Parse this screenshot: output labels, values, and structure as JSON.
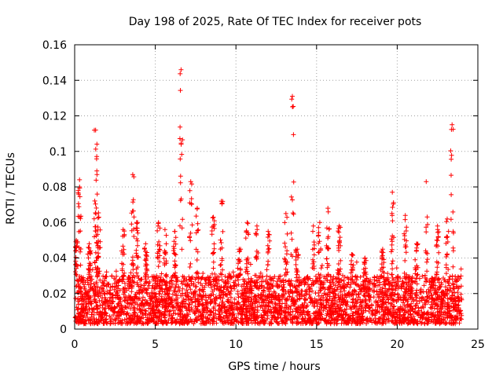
{
  "chart_data": {
    "type": "scatter",
    "title": "Day 198 of 2025, Rate Of TEC Index for receiver pots",
    "xlabel": "GPS time / hours",
    "ylabel": "ROTI / TECUs",
    "xlim": [
      0,
      25
    ],
    "ylim": [
      0,
      0.16
    ],
    "x_ticks": [
      "0",
      "5",
      "10",
      "15",
      "20",
      "25"
    ],
    "y_ticks": [
      "0",
      "0.02",
      "0.04",
      "0.06",
      "0.08",
      "0.1",
      "0.12",
      "0.14",
      "0.16"
    ],
    "x_tick_values": [
      0,
      5,
      10,
      15,
      20,
      25
    ],
    "y_tick_values": [
      0,
      0.02,
      0.04,
      0.06,
      0.08,
      0.1,
      0.12,
      0.14,
      0.16
    ],
    "grid": true,
    "marker": "+",
    "series_color": "#ff0000",
    "baseline": {
      "x_range": [
        0.0,
        24.0
      ],
      "y_min": 0.003,
      "y_typical": 0.018,
      "y_upper": 0.03
    },
    "spikes": [
      {
        "x": 0.1,
        "y_max": 0.05
      },
      {
        "x": 0.3,
        "y_max": 0.084
      },
      {
        "x": 0.9,
        "y_max": 0.048
      },
      {
        "x": 1.3,
        "y_max": 0.112
      },
      {
        "x": 1.5,
        "y_max": 0.063
      },
      {
        "x": 1.4,
        "y_max": 0.076
      },
      {
        "x": 3.0,
        "y_max": 0.056
      },
      {
        "x": 3.6,
        "y_max": 0.087
      },
      {
        "x": 3.9,
        "y_max": 0.06
      },
      {
        "x": 4.4,
        "y_max": 0.048
      },
      {
        "x": 5.2,
        "y_max": 0.06
      },
      {
        "x": 5.6,
        "y_max": 0.056
      },
      {
        "x": 6.2,
        "y_max": 0.055
      },
      {
        "x": 6.6,
        "y_max": 0.146
      },
      {
        "x": 7.2,
        "y_max": 0.083
      },
      {
        "x": 7.6,
        "y_max": 0.068
      },
      {
        "x": 8.6,
        "y_max": 0.063
      },
      {
        "x": 9.1,
        "y_max": 0.072
      },
      {
        "x": 10.2,
        "y_max": 0.045
      },
      {
        "x": 10.7,
        "y_max": 0.06
      },
      {
        "x": 11.3,
        "y_max": 0.058
      },
      {
        "x": 12.0,
        "y_max": 0.055
      },
      {
        "x": 13.1,
        "y_max": 0.065
      },
      {
        "x": 13.5,
        "y_max": 0.131
      },
      {
        "x": 13.8,
        "y_max": 0.045
      },
      {
        "x": 14.8,
        "y_max": 0.058
      },
      {
        "x": 15.2,
        "y_max": 0.06
      },
      {
        "x": 15.7,
        "y_max": 0.068
      },
      {
        "x": 16.4,
        "y_max": 0.058
      },
      {
        "x": 17.2,
        "y_max": 0.042
      },
      {
        "x": 18.0,
        "y_max": 0.04
      },
      {
        "x": 19.1,
        "y_max": 0.045
      },
      {
        "x": 19.7,
        "y_max": 0.077
      },
      {
        "x": 20.5,
        "y_max": 0.064
      },
      {
        "x": 21.2,
        "y_max": 0.048
      },
      {
        "x": 21.8,
        "y_max": 0.083
      },
      {
        "x": 22.5,
        "y_max": 0.058
      },
      {
        "x": 23.4,
        "y_max": 0.115
      },
      {
        "x": 23.1,
        "y_max": 0.062
      }
    ]
  }
}
